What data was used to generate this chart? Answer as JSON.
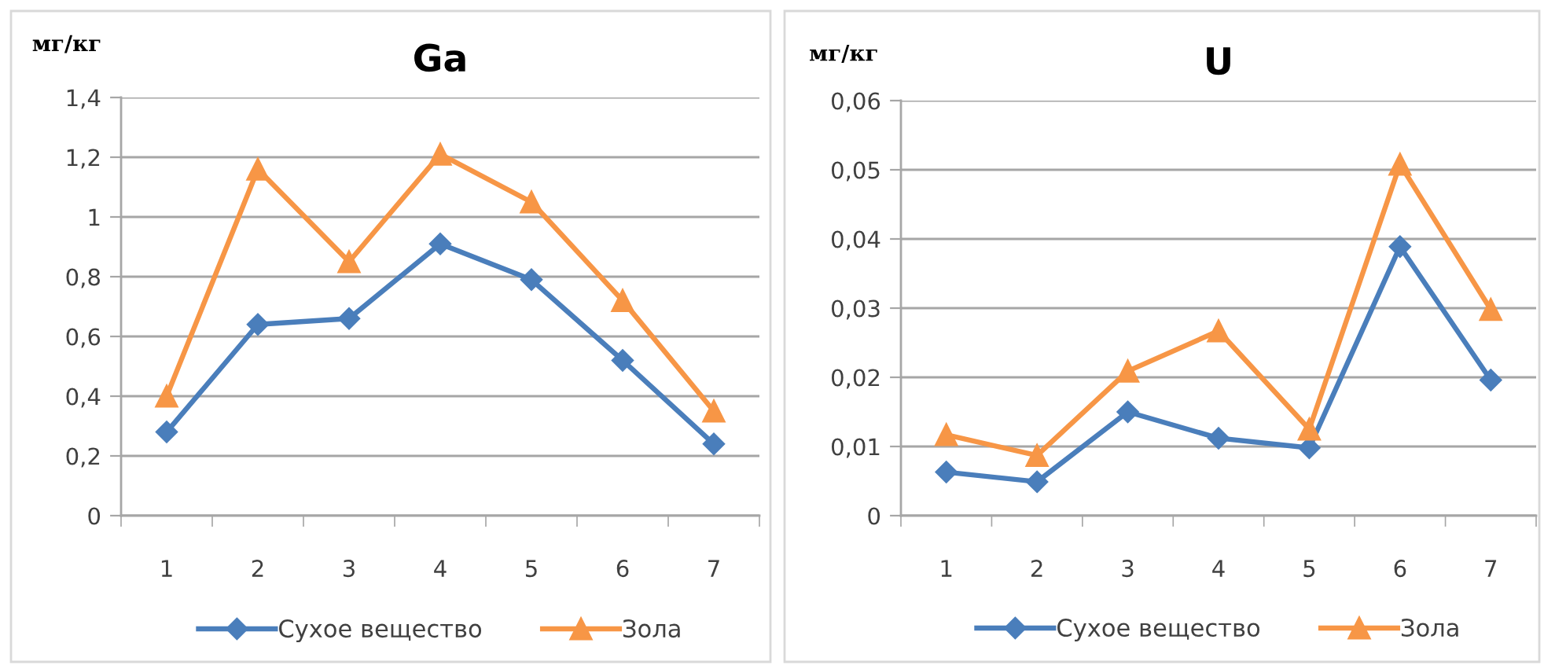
{
  "chart_data": [
    {
      "type": "line",
      "title": "Ga",
      "ylabel": "мг/кг",
      "categories": [
        "1",
        "2",
        "3",
        "4",
        "5",
        "6",
        "7"
      ],
      "series": [
        {
          "name": "Сухое вещество",
          "color": "#4a7ebb",
          "marker": "diamond",
          "values": [
            0.28,
            0.64,
            0.66,
            0.91,
            0.79,
            0.52,
            0.24
          ]
        },
        {
          "name": "Зола",
          "color": "#f79646",
          "marker": "triangle",
          "values": [
            0.4,
            1.16,
            0.85,
            1.21,
            1.05,
            0.72,
            0.35
          ]
        }
      ],
      "ylim": [
        0,
        1.4
      ],
      "yticks": [
        0,
        {
          "value": 0.2,
          "label": "0,2"
        },
        {
          "value": 0.4,
          "label": "0,4"
        },
        {
          "value": 0.6,
          "label": "0,6"
        },
        {
          "value": 0.8,
          "label": "0,8"
        },
        1,
        {
          "value": 1.2,
          "label": "1,2"
        },
        {
          "value": 1.4,
          "label": "1,4"
        }
      ],
      "grid": "y",
      "legend": "bottom",
      "line_style": "solid"
    },
    {
      "type": "line",
      "title": "U",
      "ylabel": "мг/кг",
      "categories": [
        "1",
        "2",
        "3",
        "4",
        "5",
        "6",
        "7"
      ],
      "series": [
        {
          "name": "Сухое вещество",
          "color": "#4a7ebb",
          "marker": "diamond",
          "values": [
            0.0063,
            0.0049,
            0.015,
            0.0112,
            0.0098,
            0.0389,
            0.0196
          ]
        },
        {
          "name": "Зола",
          "color": "#f79646",
          "marker": "triangle",
          "values": [
            0.0117,
            0.0087,
            0.0209,
            0.0267,
            0.0125,
            0.0508,
            0.0298
          ]
        }
      ],
      "ylim": [
        0,
        0.06
      ],
      "yticks": [
        0,
        {
          "value": 0.01,
          "label": "0,01"
        },
        {
          "value": 0.02,
          "label": "0,02"
        },
        {
          "value": 0.03,
          "label": "0,03"
        },
        {
          "value": 0.04,
          "label": "0,04"
        },
        {
          "value": 0.05,
          "label": "0,05"
        },
        {
          "value": 0.06,
          "label": "0,06"
        }
      ],
      "grid": "y",
      "legend": "bottom",
      "line_style": "solid"
    }
  ]
}
